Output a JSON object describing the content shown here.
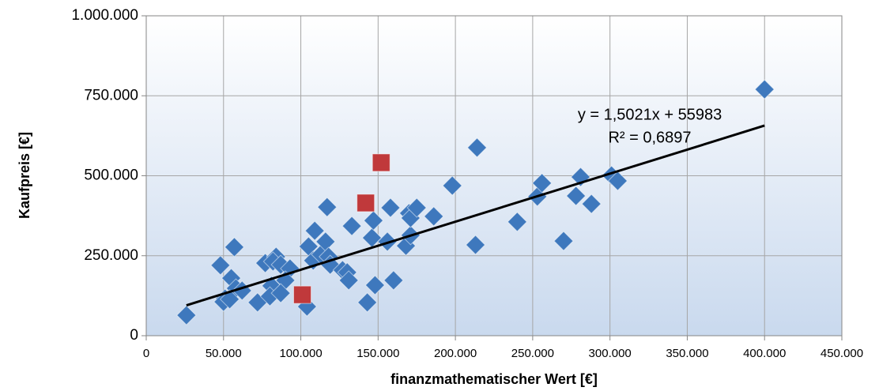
{
  "chart_data": {
    "type": "scatter",
    "x_label": "finanzmathematischer Wert [€]",
    "y_label": "Kaufpreis [€]",
    "xlim": [
      0,
      450000
    ],
    "ylim": [
      0,
      1000000
    ],
    "xticks": [
      0,
      {
        "value": 50000,
        "label": "50.000"
      },
      {
        "value": 100000,
        "label": "100.000"
      },
      {
        "value": 150000,
        "label": "150.000"
      },
      {
        "value": 200000,
        "label": "200.000"
      },
      {
        "value": 250000,
        "label": "250.000"
      },
      {
        "value": 300000,
        "label": "300.000"
      },
      {
        "value": 350000,
        "label": "350.000"
      },
      {
        "value": 400000,
        "label": "400.000"
      },
      {
        "value": 450000,
        "label": "450.000"
      }
    ],
    "yticks": [
      0,
      {
        "value": 250000,
        "label": "250.000"
      },
      {
        "value": 500000,
        "label": "500.000"
      },
      {
        "value": 750000,
        "label": "750.000"
      },
      {
        "value": 1000000,
        "label": "1.000.000"
      }
    ],
    "grid": true,
    "series": [
      {
        "color": "#3e78bd",
        "marker": "diamond",
        "x": [
          26000,
          48000,
          57000,
          55000,
          58000,
          51000,
          50000,
          54000,
          62000,
          72000,
          77000,
          84000,
          82000,
          87000,
          93000,
          90000,
          81000,
          80000,
          87000,
          104000,
          105000,
          109000,
          108000,
          113000,
          116000,
          117000,
          118000,
          119000,
          127000,
          130000,
          131000,
          133000,
          143000,
          148000,
          146000,
          147000,
          156000,
          158000,
          160000,
          168000,
          170000,
          171000,
          171000,
          175000,
          186000,
          198000,
          213000,
          214000,
          240000,
          253000,
          256000,
          270000,
          278000,
          281000,
          288000,
          301000,
          305000,
          400000
        ],
        "values": [
          64000,
          220000,
          277000,
          180000,
          148000,
          116000,
          106000,
          114000,
          141000,
          104000,
          227000,
          247000,
          232000,
          222000,
          210000,
          173000,
          156000,
          123000,
          133000,
          91000,
          279000,
          328000,
          235000,
          254000,
          294000,
          402000,
          247000,
          222000,
          205000,
          198000,
          173000,
          343000,
          104000,
          158000,
          306000,
          360000,
          294000,
          400000,
          173000,
          281000,
          383000,
          314000,
          368000,
          400000,
          373000,
          469000,
          284000,
          588000,
          356000,
          435000,
          477000,
          296000,
          437000,
          496000,
          412000,
          501000,
          484000,
          770000
        ]
      },
      {
        "color": "#c0393b",
        "marker": "square",
        "x": [
          101000,
          142000,
          152000
        ],
        "values": [
          128000,
          415000,
          541000
        ]
      }
    ],
    "trendline": {
      "slope": 1.5021,
      "intercept": 55983,
      "color": "#000000",
      "equation": "y = 1,5021x + 55983",
      "r_squared_label": "R² = 0,6897"
    }
  }
}
